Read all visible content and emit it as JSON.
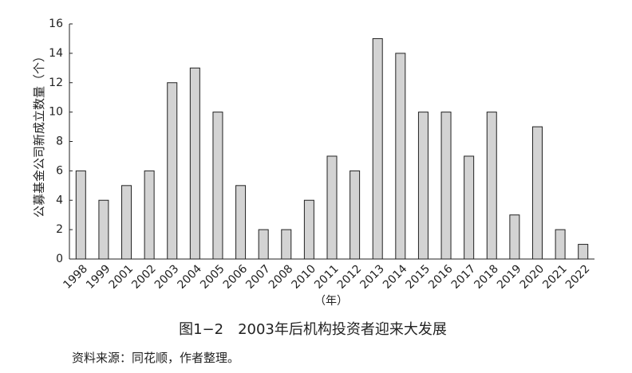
{
  "chart_data": {
    "type": "bar",
    "title": "图1−2　2003年后机构投资者迎来大发展",
    "source": "资料来源：同花顺，作者整理。",
    "y_label": "公募基金公司新成立数量（个）",
    "x_label": "（年）",
    "categories": [
      "1998",
      "1999",
      "2001",
      "2002",
      "2003",
      "2004",
      "2005",
      "2006",
      "2007",
      "2008",
      "2010",
      "2011",
      "2012",
      "2013",
      "2014",
      "2015",
      "2016",
      "2017",
      "2018",
      "2019",
      "2020",
      "2021",
      "2022"
    ],
    "values": [
      6,
      4,
      5,
      6,
      12,
      13,
      10,
      5,
      2,
      2,
      4,
      7,
      6,
      15,
      14,
      10,
      10,
      7,
      10,
      3,
      9,
      2,
      1
    ],
    "color": "#d3d3d3",
    "ylim": [
      0,
      16
    ],
    "yticks": [
      0,
      2,
      4,
      6,
      8,
      10,
      12,
      14,
      16
    ],
    "grid": false
  }
}
